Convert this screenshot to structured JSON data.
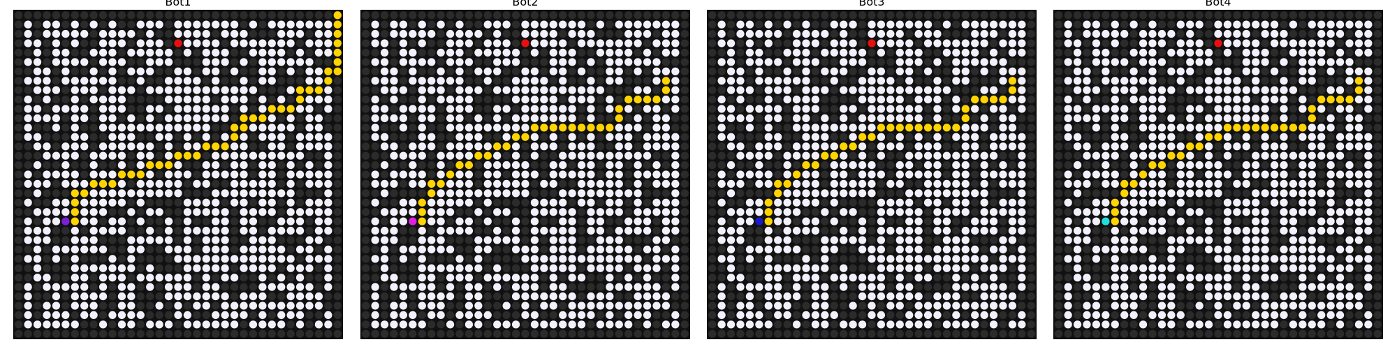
{
  "panels": [
    {
      "title": "Bot1",
      "bot_color": "#7b1fd8",
      "bot": [
        4,
        21
      ],
      "path": [
        [
          5,
          21
        ],
        [
          5,
          20
        ],
        [
          5,
          19
        ],
        [
          5,
          18
        ],
        [
          6,
          18
        ],
        [
          7,
          17
        ],
        [
          8,
          17
        ],
        [
          9,
          17
        ],
        [
          10,
          16
        ],
        [
          11,
          16
        ],
        [
          12,
          16
        ],
        [
          13,
          15
        ],
        [
          14,
          15
        ],
        [
          15,
          15
        ],
        [
          16,
          14
        ],
        [
          17,
          14
        ],
        [
          18,
          14
        ],
        [
          19,
          13
        ],
        [
          20,
          13
        ],
        [
          21,
          13
        ],
        [
          22,
          12
        ],
        [
          22,
          11
        ],
        [
          23,
          11
        ],
        [
          23,
          10
        ],
        [
          24,
          10
        ],
        [
          25,
          10
        ],
        [
          26,
          9
        ],
        [
          27,
          9
        ],
        [
          28,
          9
        ],
        [
          29,
          8
        ],
        [
          29,
          7
        ],
        [
          30,
          7
        ],
        [
          31,
          7
        ],
        [
          32,
          6
        ],
        [
          32,
          5
        ],
        [
          33,
          5
        ],
        [
          33,
          4
        ],
        [
          33,
          3
        ],
        [
          33,
          2
        ],
        [
          33,
          1
        ],
        [
          33,
          0
        ],
        [
          33,
          -1
        ]
      ],
      "goal": [
        16,
        2
      ]
    },
    {
      "title": "Bot2",
      "bot_color": "#e020e0",
      "bot": [
        4,
        21
      ],
      "path": [
        [
          5,
          21
        ],
        [
          5,
          20
        ],
        [
          5,
          19
        ],
        [
          6,
          18
        ],
        [
          6,
          17
        ],
        [
          7,
          17
        ],
        [
          8,
          16
        ],
        [
          9,
          15
        ],
        [
          10,
          15
        ],
        [
          11,
          14
        ],
        [
          12,
          14
        ],
        [
          13,
          13
        ],
        [
          14,
          13
        ],
        [
          15,
          12
        ],
        [
          16,
          12
        ],
        [
          17,
          11
        ],
        [
          18,
          11
        ],
        [
          19,
          11
        ],
        [
          20,
          11
        ],
        [
          21,
          11
        ],
        [
          22,
          11
        ],
        [
          23,
          11
        ],
        [
          24,
          11
        ],
        [
          25,
          11
        ],
        [
          26,
          10
        ],
        [
          26,
          9
        ],
        [
          27,
          8
        ],
        [
          28,
          8
        ],
        [
          29,
          8
        ],
        [
          30,
          8
        ],
        [
          31,
          7
        ],
        [
          31,
          6
        ]
      ],
      "goal": [
        16,
        2
      ]
    },
    {
      "title": "Bot3",
      "bot_color": "#1a1acc",
      "bot": [
        4,
        21
      ],
      "path": [
        [
          5,
          21
        ],
        [
          5,
          20
        ],
        [
          5,
          19
        ],
        [
          6,
          18
        ],
        [
          6,
          17
        ],
        [
          7,
          17
        ],
        [
          8,
          16
        ],
        [
          9,
          15
        ],
        [
          10,
          15
        ],
        [
          11,
          14
        ],
        [
          12,
          14
        ],
        [
          13,
          13
        ],
        [
          14,
          13
        ],
        [
          15,
          12
        ],
        [
          16,
          12
        ],
        [
          17,
          11
        ],
        [
          18,
          11
        ],
        [
          19,
          11
        ],
        [
          20,
          11
        ],
        [
          21,
          11
        ],
        [
          22,
          11
        ],
        [
          23,
          11
        ],
        [
          24,
          11
        ],
        [
          25,
          11
        ],
        [
          26,
          10
        ],
        [
          26,
          9
        ],
        [
          27,
          8
        ],
        [
          28,
          8
        ],
        [
          29,
          8
        ],
        [
          30,
          8
        ],
        [
          31,
          7
        ],
        [
          31,
          6
        ]
      ],
      "goal": [
        16,
        2
      ]
    },
    {
      "title": "Bot4",
      "bot_color": "#1fe0e0",
      "bot": [
        4,
        21
      ],
      "path": [
        [
          5,
          21
        ],
        [
          5,
          20
        ],
        [
          5,
          19
        ],
        [
          6,
          18
        ],
        [
          6,
          17
        ],
        [
          7,
          17
        ],
        [
          8,
          16
        ],
        [
          9,
          15
        ],
        [
          10,
          15
        ],
        [
          11,
          14
        ],
        [
          12,
          14
        ],
        [
          13,
          13
        ],
        [
          14,
          13
        ],
        [
          15,
          12
        ],
        [
          16,
          12
        ],
        [
          17,
          11
        ],
        [
          18,
          11
        ],
        [
          19,
          11
        ],
        [
          20,
          11
        ],
        [
          21,
          11
        ],
        [
          22,
          11
        ],
        [
          23,
          11
        ],
        [
          24,
          11
        ],
        [
          25,
          11
        ],
        [
          26,
          10
        ],
        [
          26,
          9
        ],
        [
          27,
          8
        ],
        [
          28,
          8
        ],
        [
          29,
          8
        ],
        [
          30,
          8
        ],
        [
          31,
          7
        ],
        [
          31,
          6
        ]
      ],
      "goal": [
        16,
        2
      ]
    }
  ],
  "colors": {
    "open": "#f2f0fb",
    "blocked": "#2b2b2b",
    "path": "#ffd400",
    "goal": "#e80f0f",
    "background": "#111111"
  }
}
